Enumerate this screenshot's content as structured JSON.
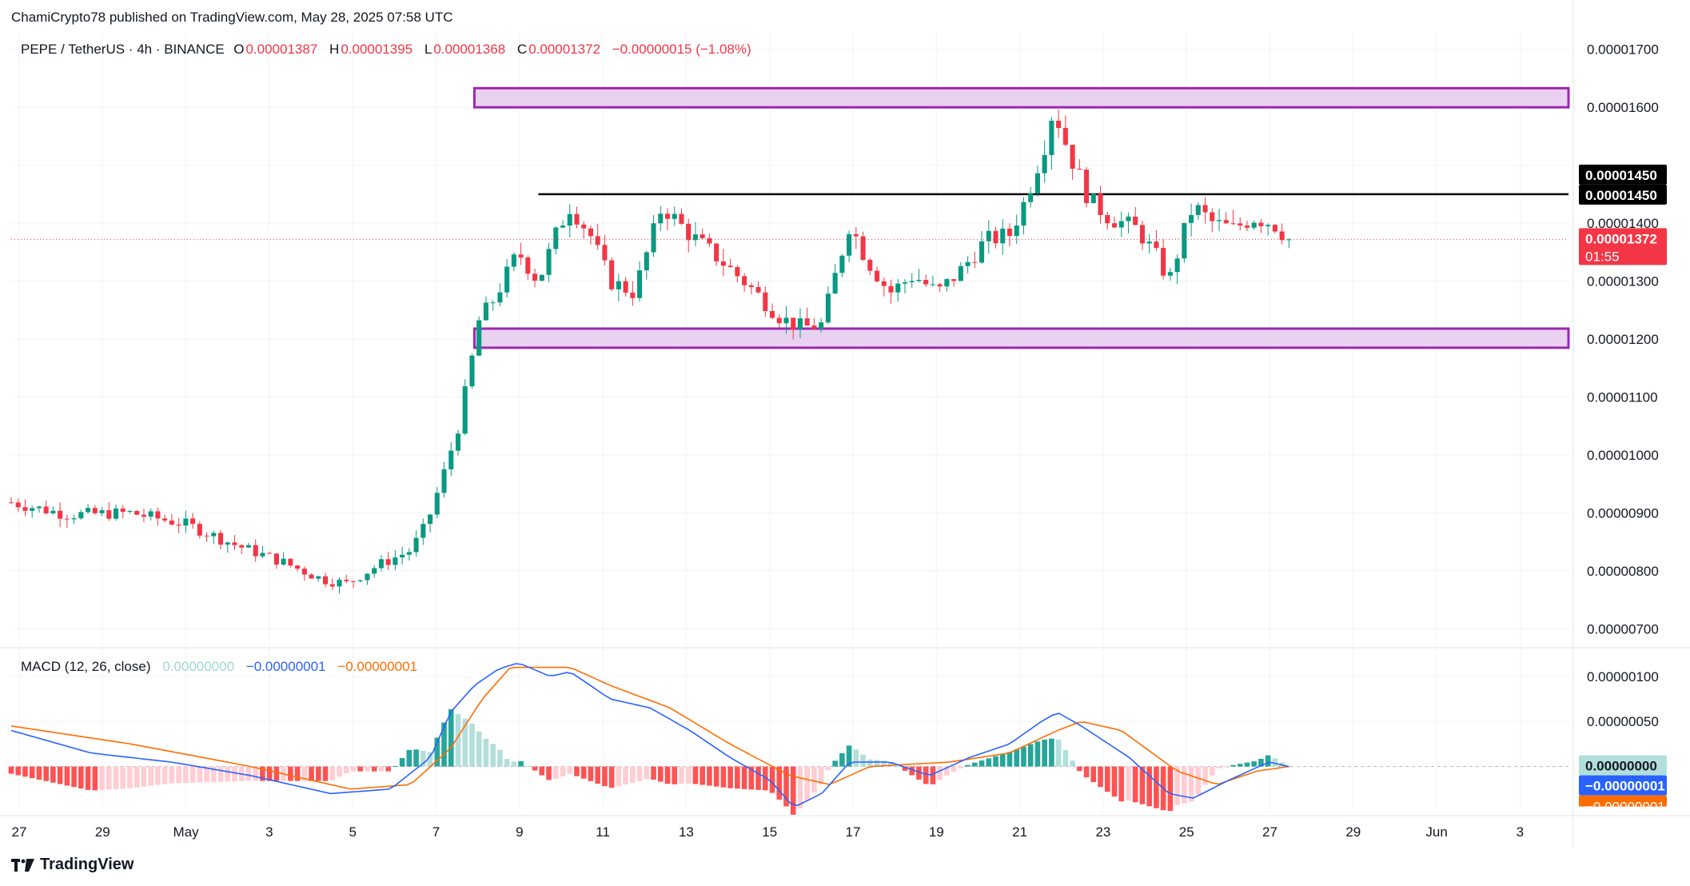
{
  "header": {
    "published": "ChamiCrypto78 published on TradingView.com, May 28, 2025 07:58 UTC"
  },
  "legend": {
    "symbol": "PEPE / TetherUS · 4h · BINANCE",
    "o_label": "O",
    "o_value": "0.00001387",
    "h_label": "H",
    "h_value": "0.00001395",
    "l_label": "L",
    "l_value": "0.00001368",
    "c_label": "C",
    "c_value": "0.00001372",
    "change": "−0.00000015 (−1.08%)"
  },
  "macd_legend": {
    "title": "MACD (12, 26, close)",
    "histogram": "0.00000000",
    "macd": "−0.00000001",
    "signal": "−0.00000001"
  },
  "brand": {
    "name": "TradingView"
  },
  "colors": {
    "up": "#089981",
    "down": "#f23645",
    "zone_fill": "#e9d1f0",
    "zone_stroke": "#9c27b0",
    "macd_line": "#2962ff",
    "signal_line": "#ff6d00",
    "hist_up_strong": "#26a69a",
    "hist_up_weak": "#b2dfdb",
    "hist_down_strong": "#ff5252",
    "hist_down_weak": "#ffcdd2"
  },
  "chart_data": {
    "type": "candlestick",
    "price_axis": {
      "ticks": [
        "0.00001700",
        "0.00001600",
        "0.00001400",
        "0.00001300",
        "0.00001200",
        "0.00001100",
        "0.00001000",
        "0.00000900",
        "0.00000800",
        "0.00000700"
      ],
      "range": [
        6.7e-06,
        1.73e-05
      ]
    },
    "macd_axis": {
      "ticks": [
        "0.00000100",
        "0.00000050"
      ],
      "range": [
        -5e-07,
        1.3e-06
      ]
    },
    "time_axis": [
      "27",
      "29",
      "May",
      "3",
      "5",
      "7",
      "9",
      "11",
      "13",
      "15",
      "17",
      "19",
      "21",
      "23",
      "25",
      "27",
      "29",
      "Jun",
      "3"
    ],
    "price_labels": {
      "resistance_a": "0.00001450",
      "resistance_b": "0.00001450",
      "last_price": "0.00001372",
      "countdown": "01:55",
      "macd_hist": "0.00000000",
      "macd_value": "−0.00000001",
      "signal_value": "−0.00000001"
    },
    "horizontal_line": 1.45e-05,
    "zones": [
      {
        "low": 1.6e-05,
        "high": 1.633e-05
      },
      {
        "low": 1.185e-05,
        "high": 1.218e-05
      }
    ],
    "candle_count": 184,
    "close_path": [
      [
        0,
        9.18e-06
      ],
      [
        14,
        8.97e-06
      ],
      [
        30,
        9e-06
      ],
      [
        44,
        8.8e-06
      ],
      [
        56,
        8.45e-06
      ],
      [
        68,
        8.15e-06
      ],
      [
        78,
        7.85e-06
      ],
      [
        84,
        7.78e-06
      ],
      [
        92,
        8.1e-06
      ],
      [
        100,
        8.35e-06
      ],
      [
        104,
        8.8e-06
      ],
      [
        108,
        9.6e-06
      ],
      [
        112,
        1.05e-05
      ],
      [
        115,
        1.15e-05
      ],
      [
        117,
        1.23e-05
      ],
      [
        121,
        1.27e-05
      ],
      [
        127,
        1.35e-05
      ],
      [
        132,
        1.3e-05
      ],
      [
        137,
        1.39e-05
      ],
      [
        140,
        1.43e-05
      ],
      [
        145,
        1.38e-05
      ],
      [
        150,
        1.3e-05
      ],
      [
        156,
        1.28e-05
      ],
      [
        163,
        1.43e-05
      ],
      [
        170,
        1.38e-05
      ],
      [
        177,
        1.34e-05
      ],
      [
        185,
        1.29e-05
      ],
      [
        193,
        1.235e-05
      ],
      [
        198,
        1.22e-05
      ],
      [
        203,
        1.225e-05
      ],
      [
        206,
        1.3e-05
      ],
      [
        210,
        1.4e-05
      ],
      [
        214,
        1.34e-05
      ],
      [
        220,
        1.28e-05
      ],
      [
        226,
        1.31e-05
      ],
      [
        232,
        1.28e-05
      ],
      [
        238,
        1.32e-05
      ],
      [
        244,
        1.37e-05
      ],
      [
        250,
        1.38e-05
      ],
      [
        254,
        1.44e-05
      ],
      [
        259,
        1.54e-05
      ],
      [
        261,
        1.6e-05
      ],
      [
        265,
        1.52e-05
      ],
      [
        270,
        1.44e-05
      ],
      [
        275,
        1.41e-05
      ],
      [
        282,
        1.39e-05
      ],
      [
        287,
        1.34e-05
      ],
      [
        290,
        1.3e-05
      ],
      [
        293,
        1.37e-05
      ],
      [
        296,
        1.43e-05
      ],
      [
        301,
        1.4e-05
      ],
      [
        306,
        1.39e-05
      ],
      [
        311,
        1.41e-05
      ],
      [
        316,
        1.4e-05
      ],
      [
        320,
        1.372e-05
      ]
    ],
    "macd_path": [
      [
        0,
        4e-07
      ],
      [
        20,
        1.5e-07
      ],
      [
        40,
        5e-08
      ],
      [
        60,
        -1e-07
      ],
      [
        80,
        -3e-07
      ],
      [
        95,
        -2.5e-07
      ],
      [
        105,
        1e-07
      ],
      [
        110,
        6e-07
      ],
      [
        116,
        9e-07
      ],
      [
        122,
        1.08e-06
      ],
      [
        127,
        1.15e-06
      ],
      [
        135,
        1e-06
      ],
      [
        140,
        1.05e-06
      ],
      [
        150,
        7.5e-07
      ],
      [
        160,
        6.5e-07
      ],
      [
        170,
        4e-07
      ],
      [
        180,
        1e-07
      ],
      [
        190,
        -1.5e-07
      ],
      [
        196,
        -4.5e-07
      ],
      [
        203,
        -3e-07
      ],
      [
        210,
        5e-08
      ],
      [
        220,
        5e-08
      ],
      [
        230,
        -1e-07
      ],
      [
        240,
        1e-07
      ],
      [
        250,
        2.5e-07
      ],
      [
        258,
        5e-07
      ],
      [
        262,
        6e-07
      ],
      [
        268,
        4.5e-07
      ],
      [
        280,
        1e-07
      ],
      [
        290,
        -3e-07
      ],
      [
        296,
        -3.5e-07
      ],
      [
        305,
        -1.5e-07
      ],
      [
        315,
        5e-08
      ],
      [
        320,
        0.0
      ]
    ],
    "signal_path": [
      [
        0,
        4.5e-07
      ],
      [
        30,
        2.5e-07
      ],
      [
        60,
        0.0
      ],
      [
        85,
        -2.5e-07
      ],
      [
        100,
        -2e-07
      ],
      [
        110,
        2e-07
      ],
      [
        118,
        7.5e-07
      ],
      [
        125,
        1.1e-06
      ],
      [
        140,
        1.1e-06
      ],
      [
        150,
        9e-07
      ],
      [
        165,
        6.5e-07
      ],
      [
        180,
        2.5e-07
      ],
      [
        195,
        -1e-07
      ],
      [
        205,
        -2e-07
      ],
      [
        215,
        0.0
      ],
      [
        235,
        5e-08
      ],
      [
        250,
        1.5e-07
      ],
      [
        262,
        4e-07
      ],
      [
        268,
        5e-07
      ],
      [
        278,
        4e-07
      ],
      [
        292,
        -5e-08
      ],
      [
        302,
        -2e-07
      ],
      [
        312,
        -5e-08
      ],
      [
        320,
        0.0
      ]
    ]
  }
}
